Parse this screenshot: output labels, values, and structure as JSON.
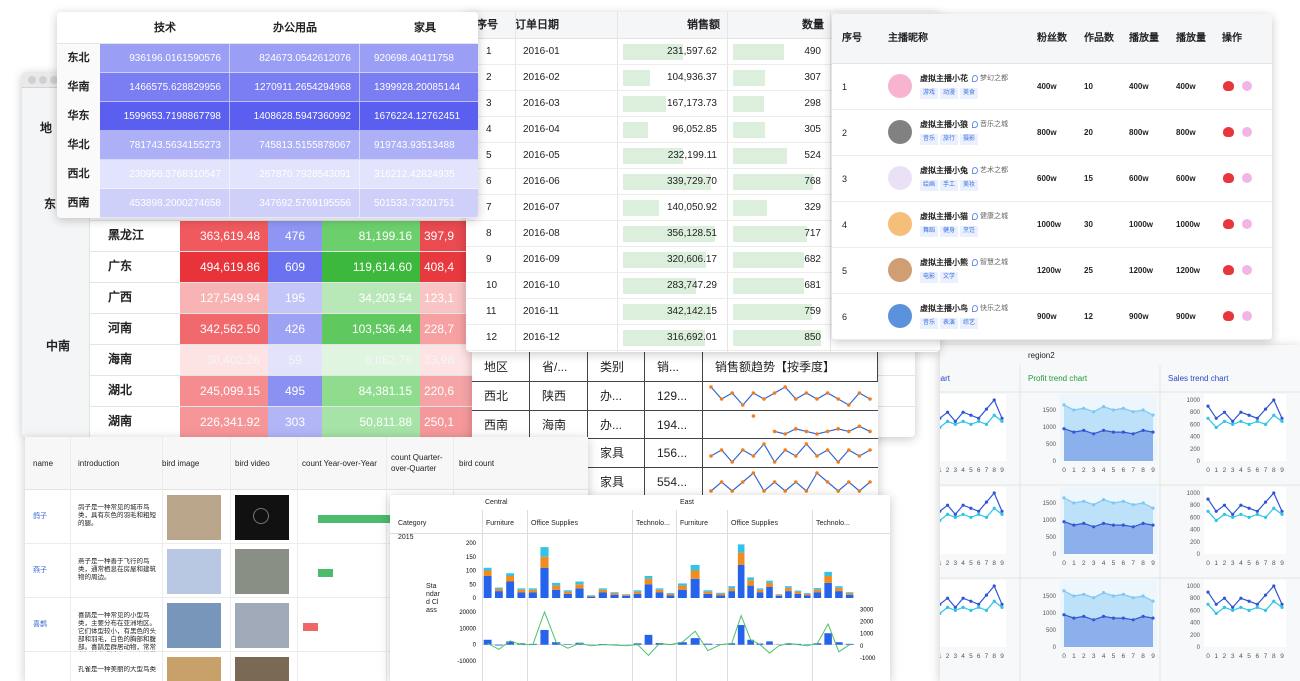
{
  "pivot": {
    "header": "地",
    "region_top": "东",
    "region": "中南",
    "rows": [
      {
        "province": "黑龙江",
        "cells": [
          "363,619.48",
          "476",
          "81,199.16",
          "397,9"
        ],
        "colors": [
          "#f05a5f",
          "#8f95f3",
          "#6bd06b",
          "#ea4a50"
        ]
      },
      {
        "province": "广东",
        "cells": [
          "494,619.86",
          "609",
          "119,614.60",
          "408,4"
        ],
        "colors": [
          "#e8333a",
          "#6b72ef",
          "#3cb83c",
          "#e8393f"
        ]
      },
      {
        "province": "广西",
        "cells": [
          "127,549.94",
          "195",
          "34,203.54",
          "123,1"
        ],
        "colors": [
          "#f8b3b5",
          "#c3c6f9",
          "#b8e8b8",
          "#fac4c5"
        ]
      },
      {
        "province": "河南",
        "cells": [
          "342,562.50",
          "426",
          "103,536.44",
          "228,7"
        ],
        "colors": [
          "#f1696d",
          "#9da2f4",
          "#5fc95f",
          "#f6a0a2"
        ]
      },
      {
        "province": "海南",
        "cells": [
          "30,402.26",
          "59",
          "8,082.76",
          "33,98"
        ],
        "colors": [
          "#fde3e3",
          "#e3e4fc",
          "#dff5df",
          "#fde3e3"
        ]
      },
      {
        "province": "湖北",
        "cells": [
          "245,099.15",
          "495",
          "84,381.15",
          "220,6"
        ],
        "colors": [
          "#f58c8f",
          "#8b91f3",
          "#8fdc8f",
          "#f6a3a5"
        ]
      },
      {
        "province": "湖南",
        "cells": [
          "226,341.92",
          "303",
          "50,811.88",
          "250,1"
        ],
        "colors": [
          "#f69699",
          "#b2b6f7",
          "#a6e3a6",
          "#f5989b"
        ]
      }
    ]
  },
  "heatmap": {
    "columns": [
      "技术",
      "办公用品",
      "家具"
    ],
    "rows": [
      {
        "name": "东北",
        "cells": [
          "936196.0161590576",
          "824673.0542612076",
          "920698.40411758"
        ],
        "color": "#9b9ef5"
      },
      {
        "name": "华南",
        "cells": [
          "1466575.628829956",
          "1270911.2654294968",
          "1399928.20085144"
        ],
        "color": "#7a7ef2"
      },
      {
        "name": "华东",
        "cells": [
          "1599653.7198867798",
          "1408628.5947360992",
          "1676224.12762451"
        ],
        "color": "#5a5fef"
      },
      {
        "name": "华北",
        "cells": [
          "781743.5634155273",
          "745813.5155878067",
          "919743.93513488"
        ],
        "color": "#aeb0f7"
      },
      {
        "name": "西北",
        "cells": [
          "230956.3768310547",
          "267870.7928543091",
          "316212.42824935"
        ],
        "color": "#e2e3fc"
      },
      {
        "name": "西南",
        "cells": [
          "453898.2000274658",
          "347692.5769195556",
          "501533.73201751"
        ],
        "color": "#cfd0fa"
      }
    ]
  },
  "orders": {
    "columns": [
      "序号",
      "订单日期",
      "销售额",
      "数量"
    ],
    "bar_color": "#dcefdc",
    "rows": [
      {
        "no": 1,
        "date": "2016-01",
        "sales": 231597.62,
        "sales_label": "231,597.62",
        "quantity": 490
      },
      {
        "no": 2,
        "date": "2016-02",
        "sales": 104936.37,
        "sales_label": "104,936.37",
        "quantity": 307
      },
      {
        "no": 3,
        "date": "2016-03",
        "sales": 167173.73,
        "sales_label": "167,173.73",
        "quantity": 298
      },
      {
        "no": 4,
        "date": "2016-04",
        "sales": 96052.85,
        "sales_label": "96,052.85",
        "quantity": 305
      },
      {
        "no": 5,
        "date": "2016-05",
        "sales": 232199.11,
        "sales_label": "232,199.11",
        "quantity": 524
      },
      {
        "no": 6,
        "date": "2016-06",
        "sales": 339729.7,
        "sales_label": "339,729.70",
        "quantity": 768
      },
      {
        "no": 7,
        "date": "2016-07",
        "sales": 140050.92,
        "sales_label": "140,050.92",
        "quantity": 329
      },
      {
        "no": 8,
        "date": "2016-08",
        "sales": 356128.51,
        "sales_label": "356,128.51",
        "quantity": 717
      },
      {
        "no": 9,
        "date": "2016-09",
        "sales": 320606.17,
        "sales_label": "320,606.17",
        "quantity": 682
      },
      {
        "no": 10,
        "date": "2016-10",
        "sales": 283747.29,
        "sales_label": "283,747.29",
        "quantity": 681
      },
      {
        "no": 11,
        "date": "2016-11",
        "sales": 342142.15,
        "sales_label": "342,142.15",
        "quantity": 759
      },
      {
        "no": 12,
        "date": "2016-12",
        "sales": 316692.01,
        "sales_label": "316,692.01",
        "quantity": 850
      }
    ]
  },
  "anchors": {
    "columns": [
      "序号",
      "主播昵称",
      "粉丝数",
      "作品数",
      "播放量",
      "播放量",
      "操作"
    ],
    "rows": [
      {
        "no": 1,
        "name": "虚拟主播小花",
        "city": "梦幻之都",
        "tags": [
          "游戏",
          "动漫",
          "美食"
        ],
        "fans": "400w",
        "works": 10,
        "plays": "400w",
        "plays2": "400w",
        "avatar": "#f7a6c8"
      },
      {
        "no": 2,
        "name": "虚拟主播小狼",
        "city": "音乐之城",
        "tags": [
          "音乐",
          "旅行",
          "摄影"
        ],
        "fans": "800w",
        "works": 20,
        "plays": "800w",
        "plays2": "800w",
        "avatar": "#6b6b6b"
      },
      {
        "no": 3,
        "name": "虚拟主播小兔",
        "city": "艺术之都",
        "tags": [
          "绘画",
          "手工",
          "美妆"
        ],
        "fans": "600w",
        "works": 15,
        "plays": "600w",
        "plays2": "600w",
        "avatar": "#e8dcf5"
      },
      {
        "no": 4,
        "name": "虚拟主播小猫",
        "city": "健康之城",
        "tags": [
          "舞蹈",
          "健身",
          "烹饪"
        ],
        "fans": "1000w",
        "works": 30,
        "plays": "1000w",
        "plays2": "1000w",
        "avatar": "#f5b461"
      },
      {
        "no": 5,
        "name": "虚拟主播小熊",
        "city": "智慧之城",
        "tags": [
          "电影",
          "文学"
        ],
        "fans": "1200w",
        "works": 25,
        "plays": "1200w",
        "plays2": "1200w",
        "avatar": "#c98c5a"
      },
      {
        "no": 6,
        "name": "虚拟主播小鸟",
        "city": "快乐之城",
        "tags": [
          "音乐",
          "表演",
          "综艺"
        ],
        "fans": "900w",
        "works": 12,
        "plays": "900w",
        "plays2": "900w",
        "avatar": "#3f7fd6"
      }
    ]
  },
  "sparkline": {
    "columns": [
      "地区",
      "省/...",
      "类别",
      "销...",
      "销售额趋势【按季度】"
    ],
    "rows": [
      {
        "region": "西北",
        "province": "陕西",
        "category": "办...",
        "sales": "129...",
        "trend": [
          5,
          3,
          4,
          2,
          4,
          3,
          4,
          5,
          3,
          4,
          3,
          4,
          3,
          2,
          4,
          3
        ]
      },
      {
        "region": "西南",
        "province": "海南",
        "category": "办...",
        "sales": "194...",
        "trend": [
          null,
          null,
          null,
          null,
          8,
          null,
          2,
          1,
          3,
          2,
          1,
          2,
          3,
          2,
          4,
          2
        ]
      },
      {
        "category": "家具",
        "sales": "156...",
        "trend": [
          3,
          4,
          2,
          4,
          3,
          5,
          2,
          4,
          3,
          5,
          3,
          4,
          2,
          4,
          3,
          4
        ]
      },
      {
        "category": "家具",
        "sales": "554...",
        "trend": [
          2,
          3,
          2,
          3,
          4,
          2,
          3,
          2,
          3,
          2,
          4,
          3,
          2,
          3,
          2,
          3
        ]
      }
    ]
  },
  "birds": {
    "columns": [
      "name",
      "introduction",
      "bird image",
      "bird video",
      "count Year-over-Year",
      "count Quarter-over-Quarter",
      "bird count"
    ],
    "rows": [
      {
        "name": "鸽子",
        "intro": "鸽子是一种常见的城市鸟类，具有灰色的羽毛和粗短的腿。",
        "yoy": 0.8
      },
      {
        "name": "燕子",
        "intro": "燕子是一种善于飞行的鸟类，通常栖息在房屋和建筑物的周边。",
        "yoy": 0.15
      },
      {
        "name": "喜鹊",
        "intro": "喜鹊是一种常见的小型鸟类，主要分布在亚洲地区。它们体型较小，有黑色的头部和羽毛，白色的胸部和腹部。喜鹊是群居动物，常常在树林中或城市公园中筑巢繁殖。",
        "yoy": -0.15
      },
      {
        "intro": "孔雀是一种美丽的大型鸟类"
      }
    ]
  },
  "pivot_chart": {
    "regions": [
      "Central",
      "East"
    ],
    "category_label": "Category",
    "year": "2015",
    "row_label": "Standard Class",
    "subcategories": [
      "Furniture",
      "Office Supplies",
      "Technolo...",
      "Furniture",
      "Office Supplies",
      "Technolo..."
    ],
    "group_sizes": [
      4,
      9,
      4,
      4,
      9,
      4
    ],
    "upper": {
      "ylim": [
        0,
        220
      ],
      "yticks": [
        0,
        50,
        100,
        150,
        200
      ],
      "series": [
        {
          "color": "#2563eb",
          "values": [
            80,
            25,
            60,
            20,
            20,
            110,
            30,
            15,
            35,
            5,
            20,
            12,
            8,
            15,
            50,
            20,
            10,
            30,
            70,
            15,
            10,
            25,
            120,
            45,
            20,
            40,
            8,
            25,
            15,
            10,
            20,
            55,
            25,
            12
          ]
        },
        {
          "color": "#f28c1e",
          "values": [
            20,
            8,
            20,
            10,
            10,
            40,
            15,
            8,
            15,
            3,
            10,
            6,
            4,
            8,
            20,
            10,
            5,
            15,
            30,
            8,
            6,
            10,
            45,
            20,
            10,
            15,
            4,
            12,
            8,
            5,
            10,
            25,
            12,
            6
          ]
        },
        {
          "color": "#33c3e8",
          "values": [
            10,
            5,
            10,
            5,
            5,
            35,
            10,
            5,
            10,
            2,
            5,
            3,
            2,
            5,
            10,
            5,
            3,
            8,
            20,
            5,
            3,
            8,
            30,
            10,
            5,
            8,
            2,
            6,
            4,
            3,
            6,
            15,
            6,
            3
          ]
        }
      ]
    },
    "lower": {
      "ylim": [
        -15000,
        22000
      ],
      "yticks": [
        -10000,
        0,
        10000,
        20000
      ],
      "y2lim": [
        -1300,
        3300
      ],
      "y2ticks": [
        -1000,
        0,
        1000,
        2000,
        3000
      ],
      "bars": {
        "color": "#2563eb",
        "values": [
          3000,
          -500,
          2000,
          800,
          500,
          9000,
          1500,
          300,
          1200,
          100,
          400,
          200,
          50,
          800,
          6000,
          1000,
          400,
          1500,
          4000,
          600,
          300,
          900,
          12000,
          3000,
          700,
          2000,
          150,
          800,
          500,
          200,
          900,
          7000,
          1500,
          500
        ]
      },
      "line": {
        "color": "#4cc26b",
        "values": [
          200,
          -300,
          400,
          100,
          100,
          2800,
          300,
          -200,
          200,
          0,
          100,
          50,
          0,
          100,
          -800,
          200,
          100,
          300,
          1200,
          -400,
          100,
          200,
          2500,
          500,
          100,
          -600,
          0,
          200,
          100,
          0,
          200,
          1800,
          -500,
          100
        ]
      }
    }
  },
  "trend_grid": {
    "title": "region2",
    "charts": [
      "Sales trend chart",
      "Profit trend chart",
      "Sales trend chart"
    ],
    "xticks": [
      0,
      1,
      2,
      3,
      4,
      5,
      6,
      7,
      8,
      9
    ],
    "profit": {
      "ylim": [
        0,
        1800
      ],
      "yticks": [
        0,
        500,
        1000,
        1500
      ],
      "series": [
        {
          "color": "#7ec8f2",
          "values": [
            1650,
            1500,
            1550,
            1450,
            1600,
            1500,
            1550,
            1450,
            1500,
            1350
          ]
        },
        {
          "color": "#3457d5",
          "values": [
            950,
            850,
            900,
            800,
            900,
            850,
            850,
            800,
            900,
            850
          ]
        }
      ]
    },
    "sales": {
      "ylim": [
        0,
        1000
      ],
      "yticks": [
        0,
        200,
        400,
        600,
        800,
        1000
      ],
      "series": [
        {
          "color": "#2f54d8",
          "values": [
            900,
            700,
            800,
            650,
            800,
            750,
            700,
            850,
            1000,
            700
          ]
        },
        {
          "color": "#2ec4e6",
          "values": [
            700,
            550,
            650,
            600,
            650,
            600,
            650,
            600,
            750,
            650
          ]
        }
      ]
    }
  }
}
